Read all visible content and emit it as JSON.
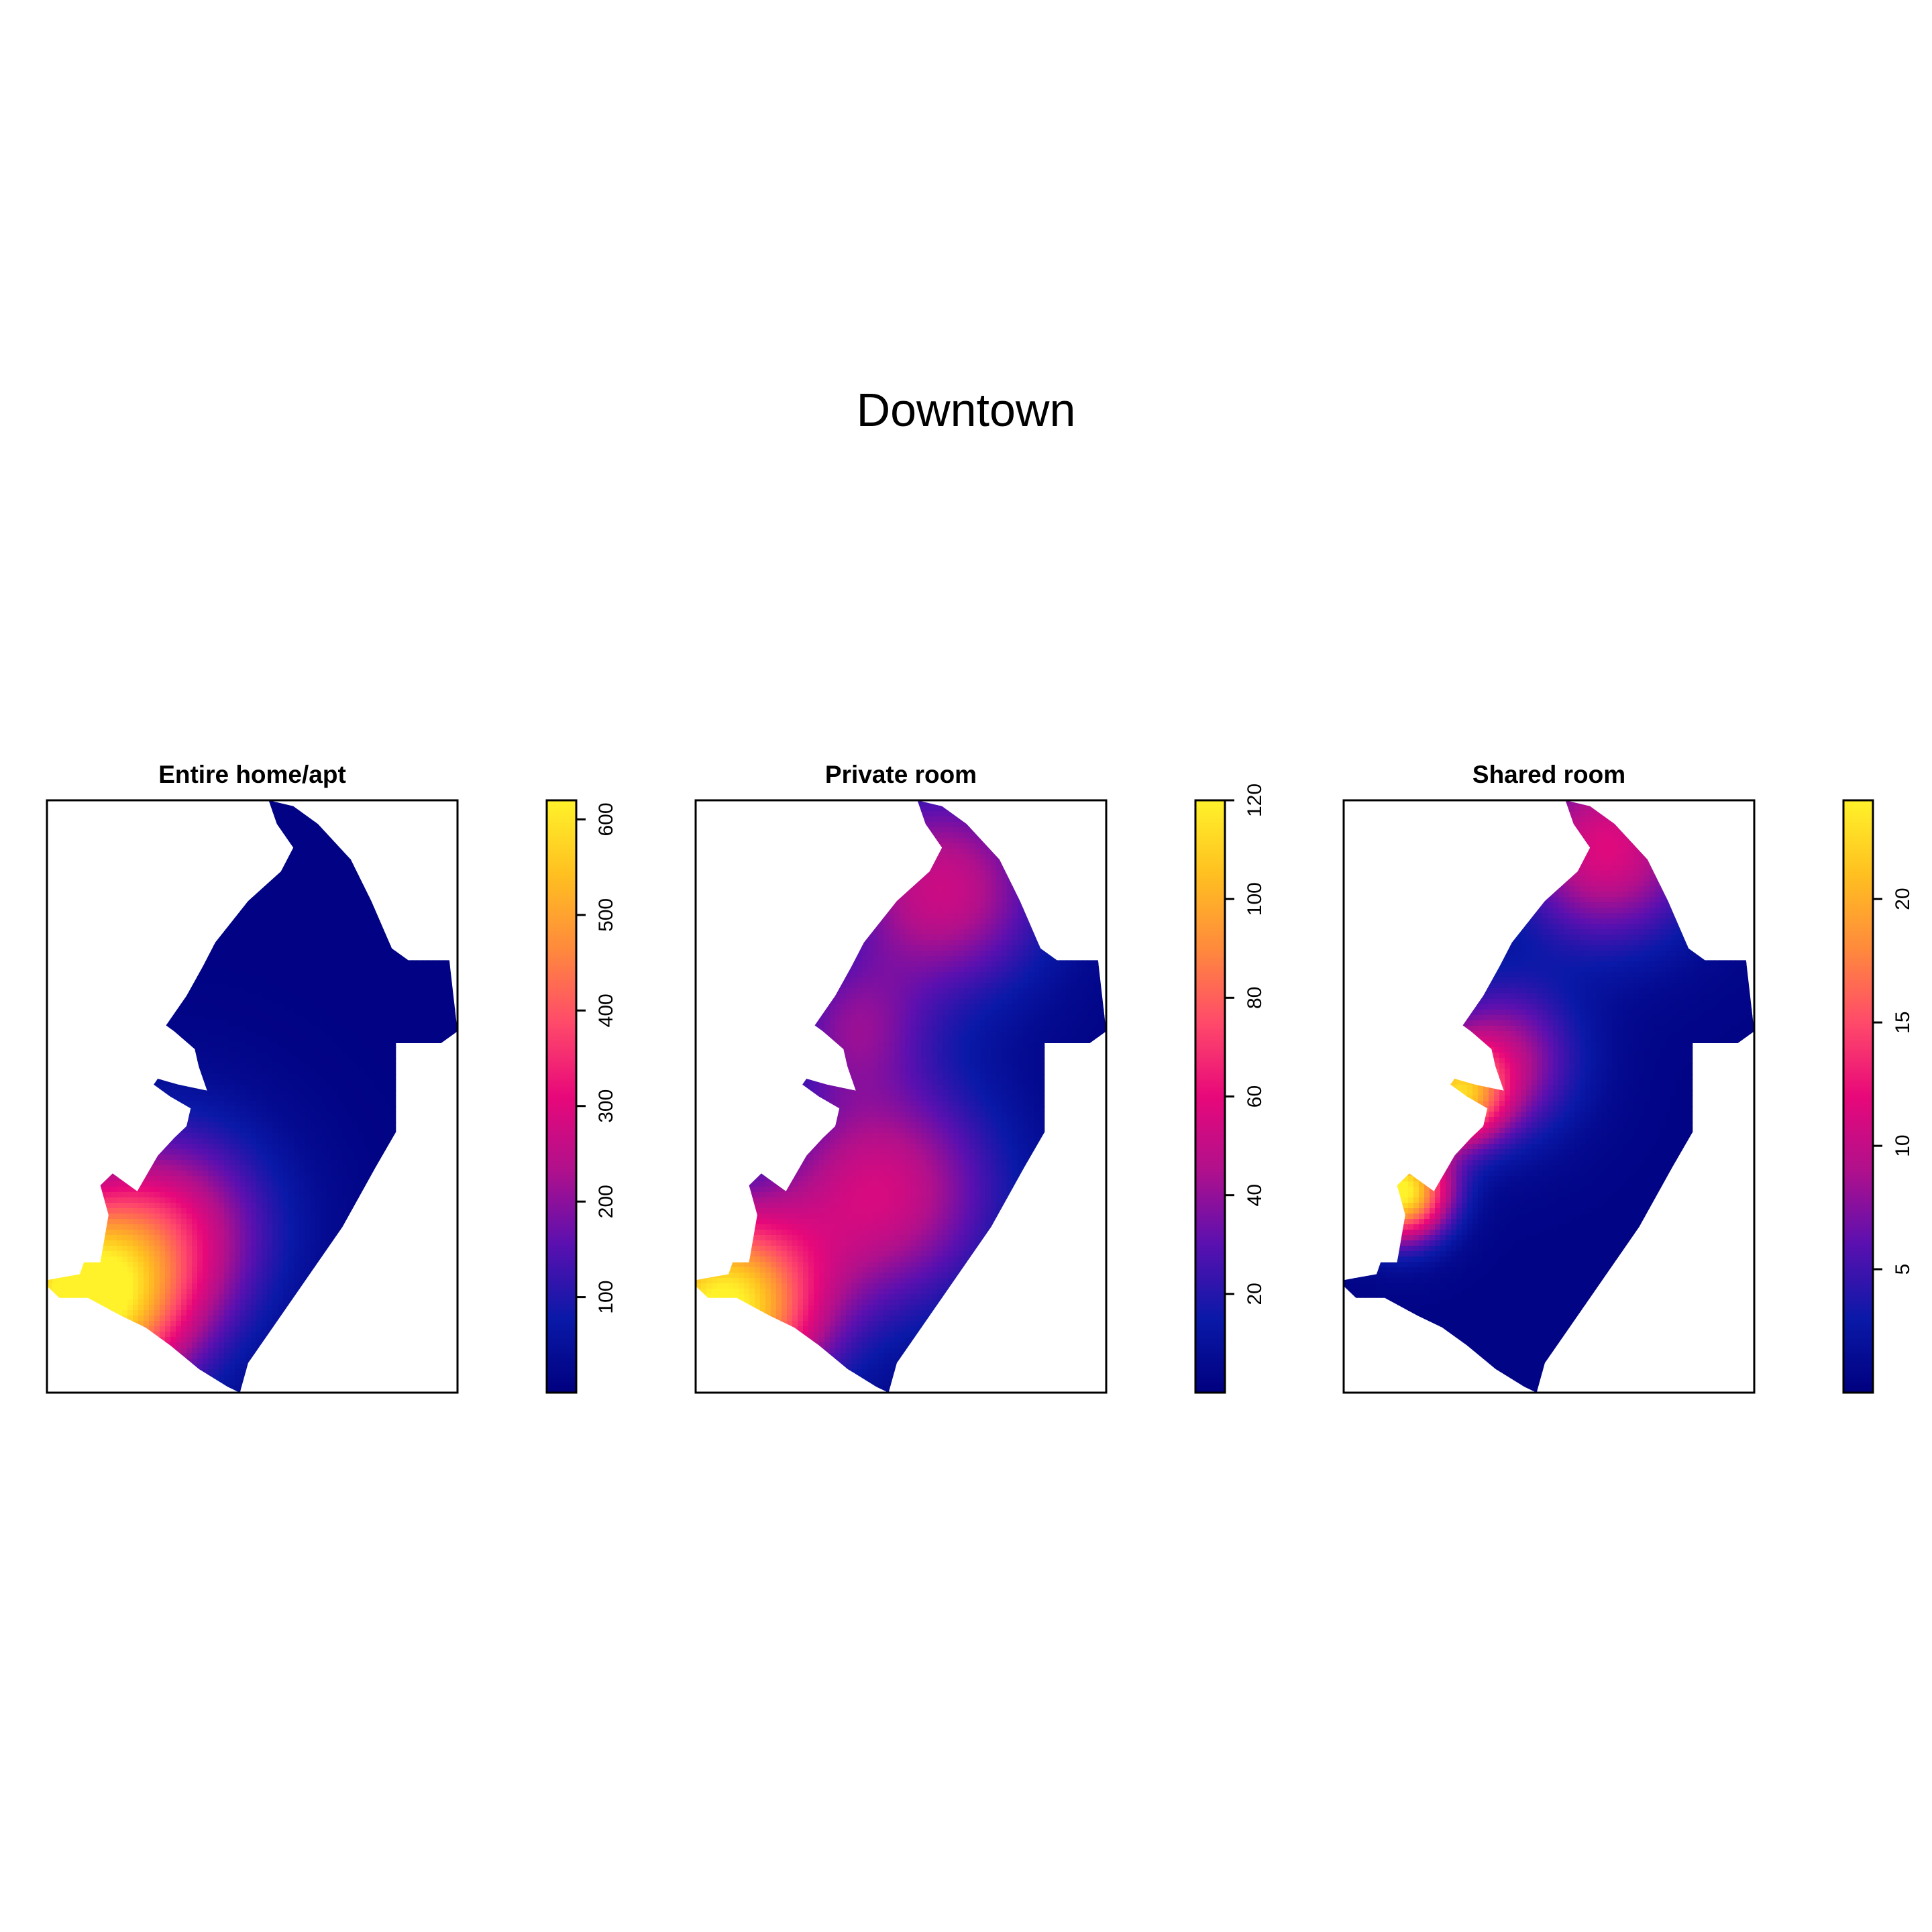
{
  "title": "Downtown",
  "colorscale": {
    "stops": [
      "#00007F",
      "#0A19A8",
      "#5A10B0",
      "#B0108C",
      "#E8087A",
      "#FF4A6A",
      "#FF8A3C",
      "#FFC020",
      "#FFF22A"
    ]
  },
  "chart_data": [
    {
      "type": "heatmap",
      "title": "Entire home/apt",
      "xlabel": "",
      "ylabel": "",
      "legend": "right",
      "zlim": [
        0,
        620
      ],
      "legend_ticks": [
        100,
        200,
        300,
        400,
        500,
        600
      ],
      "hotspots": [
        {
          "cx": 0.08,
          "cy": 0.85,
          "value": 620,
          "spread": 0.17
        },
        {
          "cx": 0.3,
          "cy": 0.72,
          "value": 240,
          "spread": 0.18
        }
      ],
      "base_value": 10
    },
    {
      "type": "heatmap",
      "title": "Private room",
      "xlabel": "",
      "ylabel": "",
      "legend": "right",
      "zlim": [
        0,
        120
      ],
      "legend_ticks": [
        20,
        40,
        60,
        80,
        100,
        120
      ],
      "hotspots": [
        {
          "cx": 0.06,
          "cy": 0.86,
          "value": 120,
          "spread": 0.16
        },
        {
          "cx": 0.45,
          "cy": 0.66,
          "value": 52,
          "spread": 0.2
        },
        {
          "cx": 0.6,
          "cy": 0.15,
          "value": 50,
          "spread": 0.18
        },
        {
          "cx": 0.38,
          "cy": 0.38,
          "value": 28,
          "spread": 0.12
        }
      ],
      "base_value": 2
    },
    {
      "type": "heatmap",
      "title": "Shared room",
      "xlabel": "",
      "ylabel": "",
      "legend": "right",
      "zlim": [
        0,
        24
      ],
      "legend_ticks": [
        5,
        10,
        15,
        20
      ],
      "hotspots": [
        {
          "cx": 0.14,
          "cy": 0.66,
          "value": 24,
          "spread": 0.08
        },
        {
          "cx": 0.27,
          "cy": 0.5,
          "value": 17,
          "spread": 0.08
        },
        {
          "cx": 0.64,
          "cy": 0.08,
          "value": 11,
          "spread": 0.16
        },
        {
          "cx": 0.38,
          "cy": 0.44,
          "value": 9,
          "spread": 0.13
        }
      ],
      "base_value": 0.5
    }
  ]
}
